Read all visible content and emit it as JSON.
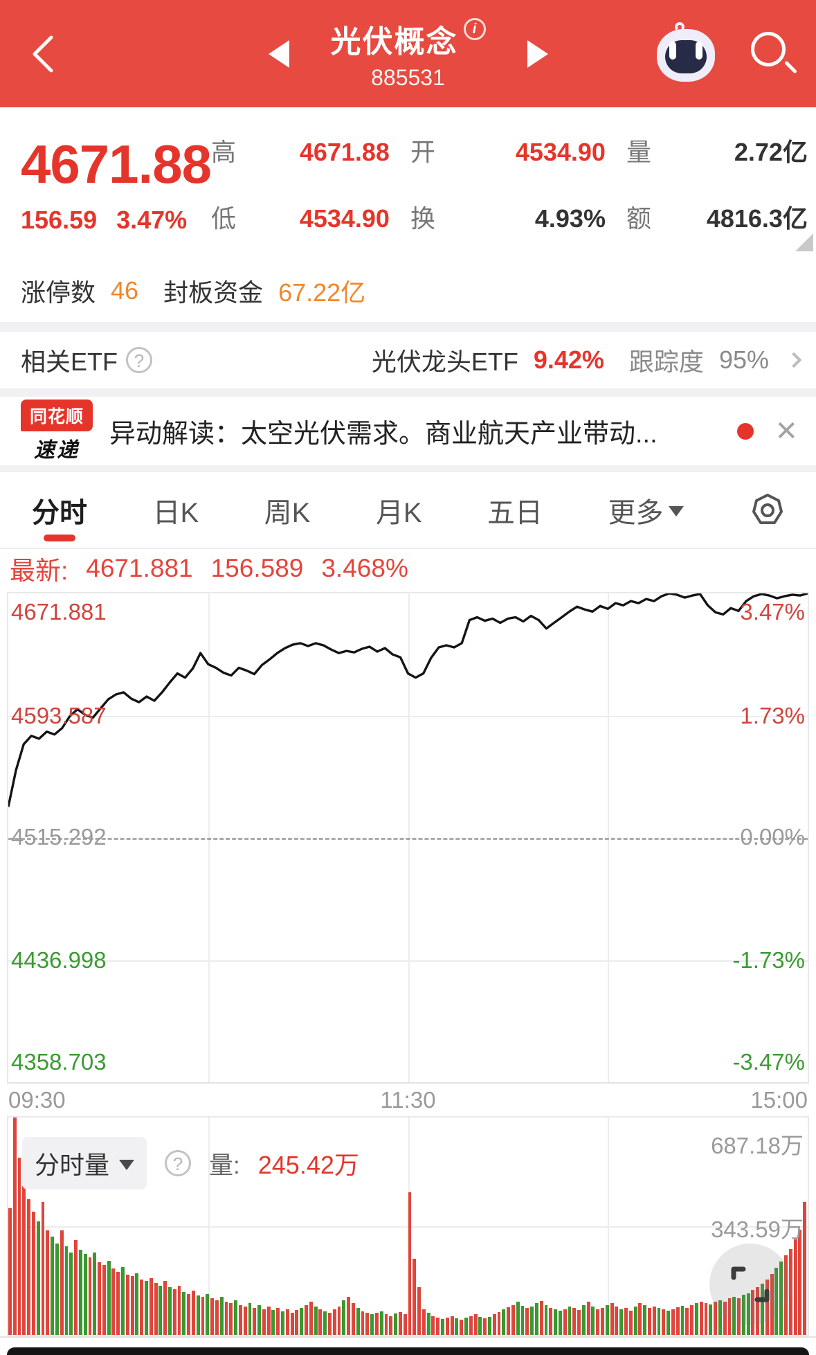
{
  "header": {
    "title": "光伏概念",
    "code": "885531"
  },
  "quote": {
    "price": "4671.88",
    "change": "156.59",
    "change_pct": "3.47%",
    "cells": [
      {
        "label": "高",
        "value": "4671.88"
      },
      {
        "label": "开",
        "value": "4534.90"
      },
      {
        "label": "量",
        "value": "2.72亿"
      },
      {
        "label": "低",
        "value": "4534.90"
      },
      {
        "label": "换",
        "value": "4.93%"
      },
      {
        "label": "额",
        "value": "4816.3亿"
      }
    ]
  },
  "limit_row": {
    "label1": "涨停数",
    "value1": "46",
    "label2": "封板资金",
    "value2": "67.22亿"
  },
  "etf_row": {
    "left_label": "相关ETF",
    "name": "光伏龙头ETF",
    "pct": "9.42%",
    "track_label": "跟踪度",
    "track_value": "95%"
  },
  "news": {
    "logo_top": "同花顺",
    "logo_bottom": "速递",
    "text": "异动解读：太空光伏需求。商业航天产业带动..."
  },
  "tabs": {
    "items": [
      "分时",
      "日K",
      "周K",
      "月K",
      "五日"
    ],
    "more_label": "更多"
  },
  "latest": {
    "label": "最新:",
    "price": "4671.881",
    "change": "156.589",
    "pct": "3.468%"
  },
  "chart_data": [
    {
      "type": "line",
      "title": "分时走势",
      "x_ticks": [
        "09:30",
        "11:30",
        "15:00"
      ],
      "y_left_labels": [
        "4671.881",
        "4593.587",
        "4515.292",
        "4436.998",
        "4358.703"
      ],
      "y_right_labels": [
        "3.47%",
        "1.73%",
        "0.00%",
        "-1.73%",
        "-3.47%"
      ],
      "prev_close": 4515.292,
      "ylim_pct": [
        -3.47,
        3.47
      ],
      "grid": "quarters, dashed zero line",
      "line_color": "#141414",
      "pct_points": [
        0.43,
        0.95,
        1.32,
        1.44,
        1.4,
        1.5,
        1.46,
        1.55,
        1.72,
        1.82,
        1.74,
        1.7,
        1.83,
        1.96,
        2.03,
        2.06,
        1.97,
        1.92,
        2.0,
        1.94,
        2.06,
        2.2,
        2.33,
        2.27,
        2.4,
        2.62,
        2.46,
        2.41,
        2.34,
        2.3,
        2.41,
        2.37,
        2.32,
        2.45,
        2.53,
        2.62,
        2.69,
        2.74,
        2.76,
        2.72,
        2.76,
        2.73,
        2.67,
        2.62,
        2.65,
        2.63,
        2.68,
        2.71,
        2.64,
        2.69,
        2.6,
        2.56,
        2.33,
        2.27,
        2.33,
        2.55,
        2.7,
        2.73,
        2.7,
        2.76,
        3.09,
        3.13,
        3.08,
        3.11,
        3.05,
        3.11,
        3.13,
        3.07,
        3.15,
        3.09,
        2.97,
        3.05,
        3.13,
        3.21,
        3.28,
        3.24,
        3.21,
        3.29,
        3.25,
        3.33,
        3.3,
        3.36,
        3.33,
        3.39,
        3.36,
        3.43,
        3.47,
        3.45,
        3.41,
        3.44,
        3.46,
        3.3,
        3.2,
        3.17,
        3.26,
        3.22,
        3.36,
        3.43,
        3.46,
        3.44,
        3.4,
        3.43,
        3.45,
        3.44,
        3.47
      ]
    },
    {
      "type": "bar",
      "name": "分时量",
      "unit": "万",
      "ylim": [
        0,
        687.18
      ],
      "y_ticks": [
        687.18,
        343.59
      ],
      "up_color": "#e0453c",
      "down_color": "#39992e",
      "heights": [
        400,
        687,
        560,
        470,
        430,
        390,
        360,
        420,
        330,
        310,
        290,
        330,
        280,
        260,
        300,
        270,
        255,
        245,
        260,
        230,
        220,
        235,
        210,
        200,
        215,
        190,
        185,
        195,
        175,
        170,
        180,
        165,
        155,
        170,
        150,
        145,
        155,
        135,
        130,
        140,
        125,
        120,
        130,
        115,
        110,
        120,
        105,
        100,
        110,
        95,
        90,
        100,
        85,
        95,
        80,
        90,
        78,
        85,
        75,
        80,
        70,
        78,
        85,
        95,
        105,
        90,
        80,
        75,
        70,
        80,
        90,
        110,
        120,
        100,
        85,
        75,
        70,
        65,
        70,
        75,
        65,
        60,
        68,
        72,
        65,
        450,
        240,
        150,
        80,
        70,
        60,
        55,
        50,
        55,
        60,
        52,
        48,
        55,
        60,
        65,
        58,
        52,
        58,
        65,
        72,
        80,
        88,
        95,
        105,
        92,
        85,
        90,
        100,
        108,
        95,
        86,
        80,
        76,
        82,
        90,
        86,
        78,
        95,
        104,
        90,
        82,
        86,
        95,
        100,
        90,
        82,
        86,
        76,
        90,
        100,
        95,
        86,
        90,
        86,
        80,
        76,
        82,
        88,
        92,
        86,
        95,
        100,
        104,
        100,
        96,
        105,
        110,
        106,
        115,
        120,
        116,
        126,
        132,
        142,
        152,
        162,
        176,
        192,
        212,
        232,
        252,
        272,
        302,
        332,
        420
      ],
      "colors": "rrrrrrgrrggrggrggrgrrgrrgrrgrgrrgrgrrgrrgrgrrgrrgrrgrgrrgrgrrrgrrgrgrrrgrrgrrgrgrrgrrrrrrgrrgrrgrgrrgrgrrgrrggrggrgrggrgrrgrgrrgrrgrrgrgrrgrgrrgrrgrrgrgrrgrggrrgrrggrrrrr"
    }
  ],
  "volume_pane": {
    "selector": "分时量",
    "vol_label": "量:",
    "vol_value": "245.42万",
    "y_top": "687.18万",
    "y_mid": "343.59万"
  },
  "colors": {
    "header_red": "#e64a40",
    "price_red": "#e5352b",
    "orange": "#f0872a",
    "green": "#3a9b31",
    "bar_red": "#e0453c",
    "bar_green": "#39992e",
    "accent_underline": "#e5352b"
  }
}
